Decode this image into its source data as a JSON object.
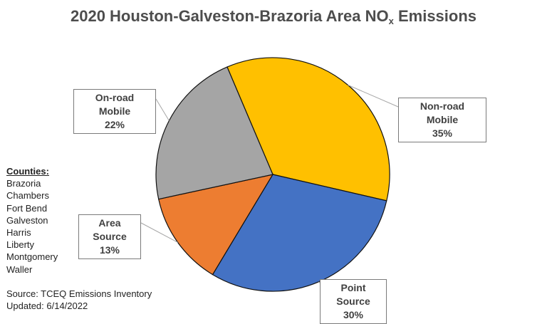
{
  "chart_data": {
    "type": "pie",
    "title": {
      "main": "2020 Houston-Galveston-Brazoria Area NO",
      "subscript": "x",
      "suffix": " Emissions"
    },
    "slices": [
      {
        "label": "Non-road Mobile",
        "value": 35,
        "display": "35%",
        "color": "#FFC000"
      },
      {
        "label": "Point Source",
        "value": 30,
        "display": "30%",
        "color": "#4472C4"
      },
      {
        "label": "Area Source",
        "value": 13,
        "display": "13%",
        "color": "#ED7D31"
      },
      {
        "label": "On-road Mobile",
        "value": 22,
        "display": "22%",
        "color": "#A5A5A5"
      }
    ]
  },
  "counties": {
    "heading": "Counties:",
    "list": [
      "Brazoria",
      "Chambers",
      "Fort Bend",
      "Galveston",
      "Harris",
      "Liberty",
      "Montgomery",
      "Waller"
    ]
  },
  "source": {
    "line1": "Source: TCEQ Emissions Inventory",
    "line2": "Updated: 6/14/2022"
  }
}
